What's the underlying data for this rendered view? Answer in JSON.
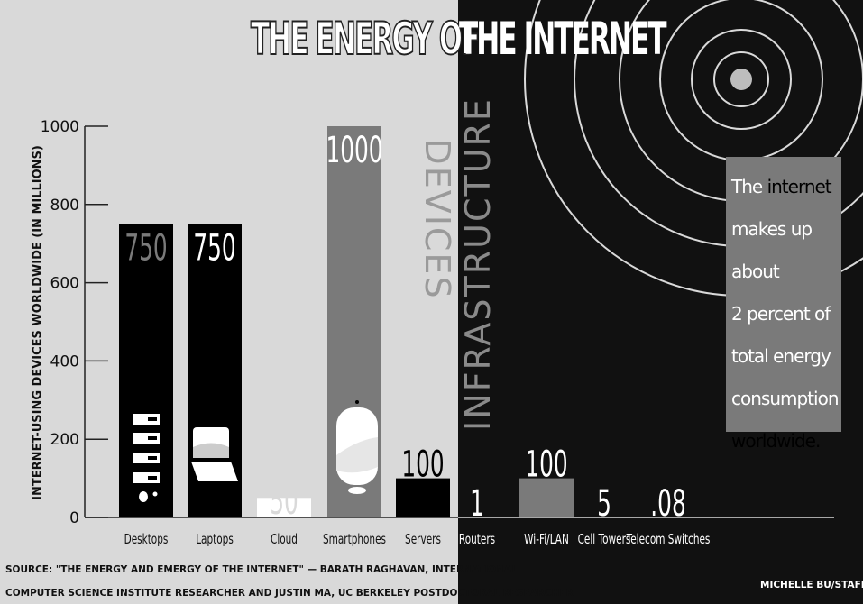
{
  "title": {
    "left": "THE ENERGY OF",
    "right": "THE INTERNET"
  },
  "chart_data": {
    "type": "bar",
    "ylabel": "INTERNET-USING DEVICES WORLDWIDE (IN MILLIONS)",
    "ylim": [
      0,
      1000
    ],
    "yticks": [
      0,
      200,
      400,
      600,
      800,
      1000
    ],
    "grid": false,
    "groups": [
      {
        "name": "DEVICES",
        "categories": [
          "Desktops",
          "Laptops",
          "Cloud",
          "Smartphones",
          "Servers"
        ]
      },
      {
        "name": "INFRASTRUCTURE",
        "categories": [
          "Routers",
          "Wi-Fi/LAN",
          "Cell Towers",
          "Telecom Switches"
        ]
      }
    ],
    "categories": [
      "Desktops",
      "Laptops",
      "Cloud",
      "Smartphones",
      "Servers",
      "Routers",
      "Wi-Fi/LAN",
      "Cell Towers",
      "Telecom Switches"
    ],
    "values": [
      750,
      750,
      50,
      1000,
      100,
      1,
      100,
      5,
      0.08
    ],
    "data_labels": [
      "750",
      "750",
      "50",
      "1000",
      "100",
      "1",
      "100",
      "5",
      ".08"
    ],
    "bar_colors": [
      "#000000",
      "#000000",
      "#ffffff",
      "#7a7a7a",
      "#000000",
      "#111111",
      "#7a7a7a",
      "#111111",
      "#111111"
    ],
    "label_colors": [
      "#7a7a7a",
      "#ffffff",
      "#d9d9d9",
      "#ffffff",
      "#000000",
      "#ffffff",
      "#ffffff",
      "#ffffff",
      "#ffffff"
    ]
  },
  "group_labels": {
    "devices": "DEVICES",
    "infrastructure": "INFRASTRUCTURE"
  },
  "callout": {
    "t1": "The ",
    "t1_hl": "internet",
    "t2": "makes up about",
    "t3": "2 percent of",
    "t4": "total energy",
    "t5": "consumption",
    "t6_hl": "worldwide."
  },
  "source": {
    "line1": "SOURCE: \"THE ENERGY AND EMERGY OF THE INTERNET\" — BARATH RAGHAVAN, INTERNATIONAL",
    "line2": "COMPUTER SCIENCE INSTITUTE RESEARCHER AND JUSTIN MA, UC BERKELEY POSTDOCTORAL RESEARCHER"
  },
  "credit": "MICHELLE BU/STAFF",
  "colors": {
    "light_panel": "#d9d9d9",
    "dark_panel": "#111111",
    "gray_accent": "#7a7a7a"
  },
  "icons": [
    "desktop-tower-icon",
    "laptop-icon",
    "smartphone-icon",
    "ripple-circles-icon"
  ]
}
